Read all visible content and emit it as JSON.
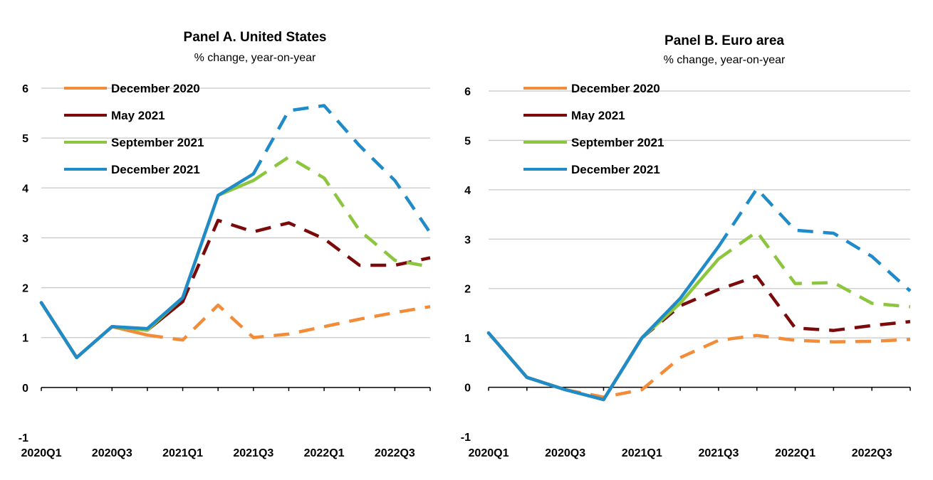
{
  "colors": {
    "December 2020": "#f28c38",
    "May 2021": "#7b0a0a",
    "September 2021": "#8cc63f",
    "December 2021": "#1f8bc9"
  },
  "chart_data": [
    {
      "type": "line",
      "title": "Panel A. United States",
      "subtitle": "% change, year-on-year",
      "xlabel": "",
      "ylabel": "",
      "ylim": [
        -1,
        6
      ],
      "yticks": [
        -1,
        0,
        1,
        2,
        3,
        4,
        5,
        6
      ],
      "categories": [
        "2020Q1",
        "2020Q2",
        "2020Q3",
        "2020Q4",
        "2021Q1",
        "2021Q2",
        "2021Q3",
        "2021Q4",
        "2022Q1",
        "2022Q2",
        "2022Q3",
        "2022Q4"
      ],
      "xtick_labels": [
        "2020Q1",
        "2020Q3",
        "2021Q1",
        "2021Q3",
        "2022Q1",
        "2022Q3"
      ],
      "grid": true,
      "legend": "top-left",
      "series": [
        {
          "name": "December 2020",
          "values": [
            1.7,
            0.6,
            1.22,
            1.05,
            0.95,
            1.65,
            1.0,
            1.07,
            1.22,
            1.37,
            1.5,
            1.62
          ],
          "solid_until": 3
        },
        {
          "name": "May 2021",
          "values": [
            1.7,
            0.6,
            1.22,
            1.15,
            1.72,
            3.35,
            3.12,
            3.3,
            2.98,
            2.45,
            2.45,
            2.6
          ],
          "solid_until": 4
        },
        {
          "name": "September 2021",
          "values": [
            1.7,
            0.6,
            1.22,
            1.15,
            1.8,
            3.85,
            4.15,
            4.62,
            4.2,
            3.15,
            2.55,
            2.42
          ],
          "solid_until": 6
        },
        {
          "name": "December 2021",
          "values": [
            1.7,
            0.6,
            1.22,
            1.18,
            1.8,
            3.85,
            4.28,
            5.55,
            5.65,
            4.85,
            4.15,
            3.1
          ],
          "solid_until": 6
        }
      ]
    },
    {
      "type": "line",
      "title": "Panel B. Euro area",
      "subtitle": "% change, year-on-year",
      "xlabel": "",
      "ylabel": "",
      "ylim": [
        -1,
        6
      ],
      "yticks": [
        -1,
        0,
        1,
        2,
        3,
        4,
        5,
        6
      ],
      "categories": [
        "2020Q1",
        "2020Q2",
        "2020Q3",
        "2020Q4",
        "2021Q1",
        "2021Q2",
        "2021Q3",
        "2021Q4",
        "2022Q1",
        "2022Q2",
        "2022Q3",
        "2022Q4"
      ],
      "xtick_labels": [
        "2020Q1",
        "2020Q3",
        "2021Q1",
        "2021Q3",
        "2022Q1",
        "2022Q3"
      ],
      "grid": true,
      "legend": "top-left",
      "series": [
        {
          "name": "December 2020",
          "values": [
            1.1,
            0.2,
            -0.05,
            -0.2,
            -0.05,
            0.6,
            0.95,
            1.05,
            0.95,
            0.92,
            0.93,
            0.97
          ],
          "solid_until": 2
        },
        {
          "name": "May 2021",
          "values": [
            1.1,
            0.2,
            -0.05,
            -0.25,
            1.0,
            1.65,
            1.98,
            2.25,
            1.2,
            1.15,
            1.25,
            1.33
          ],
          "solid_until": 4
        },
        {
          "name": "September 2021",
          "values": [
            1.1,
            0.2,
            -0.05,
            -0.25,
            1.0,
            1.7,
            2.6,
            3.15,
            2.1,
            2.12,
            1.7,
            1.63
          ],
          "solid_until": 6
        },
        {
          "name": "December 2021",
          "values": [
            1.1,
            0.2,
            -0.05,
            -0.25,
            1.0,
            1.8,
            2.85,
            4.02,
            3.18,
            3.12,
            2.65,
            1.95
          ],
          "solid_until": 6
        }
      ]
    }
  ]
}
